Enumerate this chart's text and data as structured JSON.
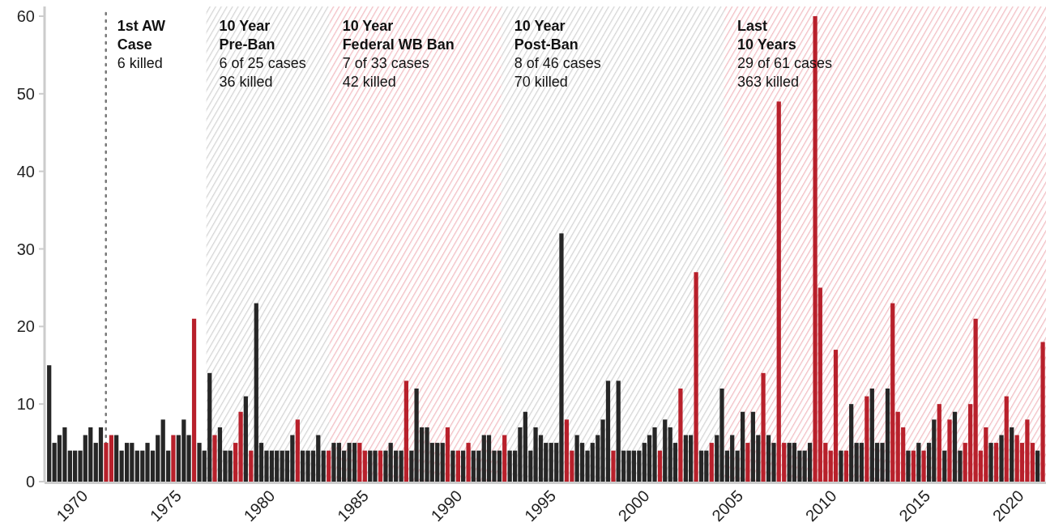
{
  "chart_data": {
    "type": "bar",
    "x": [
      1968.36,
      1968.64,
      1968.91,
      1969.19,
      1969.47,
      1969.74,
      1970.02,
      1970.29,
      1970.57,
      1970.85,
      1971.12,
      1971.4,
      1971.68,
      1971.95,
      1972.23,
      1972.51,
      1972.78,
      1973.06,
      1973.34,
      1973.61,
      1973.89,
      1974.16,
      1974.44,
      1974.72,
      1974.99,
      1975.27,
      1975.55,
      1975.82,
      1976.1,
      1976.38,
      1976.65,
      1976.93,
      1977.2,
      1977.48,
      1977.76,
      1978.03,
      1978.31,
      1978.59,
      1978.86,
      1979.14,
      1979.42,
      1979.69,
      1979.97,
      1980.25,
      1980.52,
      1980.8,
      1981.07,
      1981.35,
      1981.63,
      1981.9,
      1982.18,
      1982.46,
      1982.73,
      1983.01,
      1983.29,
      1983.56,
      1983.84,
      1984.11,
      1984.39,
      1984.67,
      1984.94,
      1985.22,
      1985.5,
      1985.77,
      1986.05,
      1986.33,
      1986.6,
      1986.88,
      1987.16,
      1987.43,
      1987.71,
      1987.98,
      1988.26,
      1988.54,
      1988.81,
      1989.09,
      1989.37,
      1989.64,
      1989.92,
      1990.2,
      1990.47,
      1990.75,
      1991.02,
      1991.3,
      1991.58,
      1991.85,
      1992.13,
      1992.41,
      1992.68,
      1992.96,
      1993.24,
      1993.51,
      1993.79,
      1994.07,
      1994.34,
      1994.62,
      1994.89,
      1995.17,
      1995.45,
      1995.72,
      1996.0,
      1996.28,
      1996.55,
      1996.83,
      1997.11,
      1997.38,
      1997.66,
      1997.93,
      1998.21,
      1998.49,
      1998.76,
      1999.04,
      1999.32,
      1999.59,
      1999.87,
      2000.15,
      2000.42,
      2000.7,
      2000.98,
      2001.25,
      2001.53,
      2001.8,
      2002.08,
      2002.36,
      2002.63,
      2002.91,
      2003.19,
      2003.46,
      2003.74,
      2004.02,
      2004.29,
      2004.57,
      2004.84,
      2005.12,
      2005.4,
      2005.67,
      2005.95,
      2006.23,
      2006.5,
      2006.78,
      2007.06,
      2007.33,
      2007.61,
      2007.89,
      2008.16,
      2008.44,
      2008.71,
      2008.99,
      2009.27,
      2009.54,
      2009.82,
      2010.1,
      2010.37,
      2010.65,
      2010.93,
      2011.2,
      2011.48,
      2011.75,
      2012.03,
      2012.31,
      2012.58,
      2012.86,
      2013.14,
      2013.41,
      2013.69,
      2013.97,
      2014.24,
      2014.52,
      2014.8,
      2015.07,
      2015.35,
      2015.62,
      2015.9,
      2016.18,
      2016.45,
      2016.73,
      2017.01,
      2017.28,
      2017.56,
      2017.84,
      2018.11,
      2018.39,
      2018.66,
      2018.94,
      2019.22,
      2019.49,
      2019.77,
      2020.05,
      2020.32,
      2020.6,
      2020.88,
      2021.15,
      2021.43
    ],
    "values": [
      15,
      5,
      6,
      7,
      4,
      4,
      4,
      6,
      7,
      5,
      7,
      5,
      6,
      6,
      4,
      5,
      5,
      4,
      4,
      5,
      4,
      6,
      8,
      4,
      6,
      6,
      8,
      6,
      21,
      5,
      4,
      14,
      6,
      7,
      4,
      4,
      5,
      9,
      11,
      4,
      23,
      5,
      4,
      4,
      4,
      4,
      4,
      6,
      8,
      4,
      4,
      4,
      6,
      4,
      4,
      5,
      5,
      4,
      5,
      5,
      5,
      4,
      4,
      4,
      4,
      4,
      5,
      4,
      4,
      13,
      4,
      12,
      7,
      7,
      5,
      5,
      5,
      7,
      4,
      4,
      4,
      5,
      4,
      4,
      6,
      6,
      4,
      4,
      6,
      4,
      4,
      7,
      9,
      4,
      7,
      6,
      5,
      5,
      5,
      32,
      8,
      4,
      6,
      5,
      4,
      5,
      6,
      8,
      13,
      4,
      13,
      4,
      4,
      4,
      4,
      5,
      6,
      7,
      4,
      8,
      7,
      5,
      12,
      6,
      6,
      27,
      4,
      4,
      5,
      6,
      12,
      4,
      6,
      4,
      9,
      5,
      9,
      6,
      14,
      6,
      5,
      49,
      5,
      5,
      5,
      4,
      4,
      5,
      60,
      25,
      5,
      4,
      17,
      4,
      4,
      10,
      5,
      5,
      11,
      12,
      5,
      5,
      12,
      23,
      9,
      7,
      4,
      4,
      5,
      4,
      5,
      8,
      10,
      4,
      8,
      9,
      4,
      5,
      10,
      21,
      4,
      7,
      5,
      5,
      6,
      11,
      7,
      6,
      5,
      8,
      5,
      4,
      18
    ],
    "colors": [
      "#262626",
      "#262626",
      "#262626",
      "#262626",
      "#262626",
      "#262626",
      "#262626",
      "#262626",
      "#262626",
      "#262626",
      "#262626",
      "#b8202b",
      "#b8202b",
      "#262626",
      "#262626",
      "#262626",
      "#262626",
      "#262626",
      "#262626",
      "#262626",
      "#262626",
      "#262626",
      "#262626",
      "#262626",
      "#b8202b",
      "#262626",
      "#262626",
      "#262626",
      "#b8202b",
      "#262626",
      "#262626",
      "#262626",
      "#b8202b",
      "#262626",
      "#262626",
      "#262626",
      "#b8202b",
      "#b8202b",
      "#262626",
      "#b8202b",
      "#262626",
      "#262626",
      "#262626",
      "#262626",
      "#262626",
      "#262626",
      "#262626",
      "#262626",
      "#b8202b",
      "#262626",
      "#262626",
      "#262626",
      "#262626",
      "#262626",
      "#b8202b",
      "#262626",
      "#262626",
      "#262626",
      "#262626",
      "#262626",
      "#b8202b",
      "#b8202b",
      "#262626",
      "#262626",
      "#b8202b",
      "#262626",
      "#262626",
      "#262626",
      "#262626",
      "#b8202b",
      "#262626",
      "#262626",
      "#262626",
      "#262626",
      "#262626",
      "#262626",
      "#262626",
      "#b8202b",
      "#262626",
      "#b8202b",
      "#262626",
      "#b8202b",
      "#262626",
      "#262626",
      "#262626",
      "#262626",
      "#262626",
      "#262626",
      "#b8202b",
      "#262626",
      "#262626",
      "#262626",
      "#262626",
      "#262626",
      "#262626",
      "#262626",
      "#262626",
      "#262626",
      "#262626",
      "#262626",
      "#b8202b",
      "#b8202b",
      "#262626",
      "#262626",
      "#262626",
      "#262626",
      "#262626",
      "#262626",
      "#262626",
      "#b8202b",
      "#262626",
      "#262626",
      "#262626",
      "#262626",
      "#262626",
      "#262626",
      "#262626",
      "#262626",
      "#b8202b",
      "#262626",
      "#262626",
      "#262626",
      "#b8202b",
      "#262626",
      "#262626",
      "#b8202b",
      "#262626",
      "#262626",
      "#b8202b",
      "#262626",
      "#262626",
      "#262626",
      "#262626",
      "#262626",
      "#262626",
      "#b8202b",
      "#262626",
      "#262626",
      "#b8202b",
      "#262626",
      "#262626",
      "#b8202b",
      "#b8202b",
      "#262626",
      "#262626",
      "#262626",
      "#262626",
      "#262626",
      "#b8202b",
      "#b8202b",
      "#b8202b",
      "#b8202b",
      "#b8202b",
      "#262626",
      "#b8202b",
      "#262626",
      "#262626",
      "#262626",
      "#b8202b",
      "#262626",
      "#262626",
      "#262626",
      "#262626",
      "#b8202b",
      "#b8202b",
      "#b8202b",
      "#262626",
      "#b8202b",
      "#262626",
      "#b8202b",
      "#262626",
      "#262626",
      "#b8202b",
      "#262626",
      "#b8202b",
      "#262626",
      "#262626",
      "#b8202b",
      "#b8202b",
      "#b8202b",
      "#b8202b",
      "#b8202b",
      "#262626",
      "#b8202b",
      "#262626",
      "#b8202b",
      "#262626",
      "#b8202b",
      "#b8202b",
      "#b8202b",
      "#b8202b",
      "#262626",
      "#b8202b"
    ],
    "xlim": [
      1968.2,
      2021.6
    ],
    "xticks": [
      1970,
      1975,
      1980,
      1985,
      1990,
      1995,
      2000,
      2005,
      2010,
      2015,
      2020
    ],
    "ylim": [
      0,
      60
    ],
    "yticks": [
      0,
      10,
      20,
      30,
      40,
      50,
      60
    ],
    "grid": false,
    "ref_lines": [
      {
        "axis": "x",
        "value": 1971.39,
        "label": "1st AW\nCase",
        "color": "#777777",
        "line_style": "dotted"
      }
    ],
    "bands": [
      {
        "axis": "x",
        "from": 1976.75,
        "to": 1983.33,
        "label": "10 Year\nPre-Ban",
        "color": "#d4d4d4"
      },
      {
        "axis": "x",
        "from": 1983.33,
        "to": 1992.51,
        "label": "10 Year\nFederal WB Ban",
        "color": "#f2bcc2"
      },
      {
        "axis": "x",
        "from": 1992.51,
        "to": 2004.42,
        "label": "10 Year\nPost-Ban",
        "color": "#d4d4d4"
      },
      {
        "axis": "x",
        "from": 2004.42,
        "to": 2021.6,
        "label": "Last\n10 Years",
        "color": "#f2bcc2"
      }
    ],
    "annotations": [
      {
        "text": "6 killed",
        "x": 1971.39,
        "y": 54
      },
      {
        "text": "6 of 25 cases\n36 killed",
        "x": 1976.75,
        "y": 54
      },
      {
        "text": "7 of 33 cases\n42 killed",
        "x": 1983.33,
        "y": 54
      },
      {
        "text": "8 of 46 cases\n70 killed",
        "x": 1992.51,
        "y": 54
      },
      {
        "text": "29 of 61 cases\n363 killed",
        "x": 2004.42,
        "y": 54
      }
    ]
  }
}
